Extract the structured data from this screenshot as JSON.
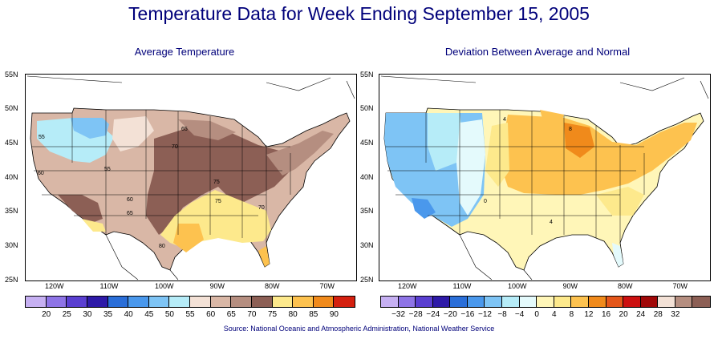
{
  "title": "Temperature Data for Week Ending September 15, 2005",
  "source": "Source:  National Oceanic and Atmospheric Administration, National Weather Service",
  "latitudes": [
    "55N",
    "50N",
    "45N",
    "40N",
    "35N",
    "30N",
    "25N"
  ],
  "left_panel": {
    "subtitle": "Average Temperature",
    "longitudes": [
      "120W",
      "110W",
      "100W",
      "90W",
      "80W",
      "70W"
    ],
    "legend": {
      "colors": [
        "#c6b0f2",
        "#8e74e6",
        "#5a3fd1",
        "#2e1aa8",
        "#2a6ed8",
        "#4a98ec",
        "#7ec4f5",
        "#b6ecf8",
        "#f3e1d6",
        "#d9b7a6",
        "#b58e80",
        "#8c5f55",
        "#fde98c",
        "#fdc24f",
        "#f08a1b",
        "#d4200f"
      ],
      "labels": [
        "20",
        "25",
        "30",
        "35",
        "40",
        "45",
        "50",
        "55",
        "60",
        "65",
        "70",
        "75",
        "80",
        "85",
        "90"
      ]
    },
    "contour_labels": [
      "55",
      "60",
      "55",
      "65",
      "70",
      "75",
      "60",
      "65",
      "75",
      "70",
      "80"
    ]
  },
  "right_panel": {
    "subtitle": "Deviation Between Average and Normal",
    "longitudes": [
      "120W",
      "110W",
      "100W",
      "90W",
      "80W",
      "70W"
    ],
    "legend": {
      "colors": [
        "#c6b0f2",
        "#8e74e6",
        "#5a3fd1",
        "#2e1aa8",
        "#2a6ed8",
        "#4a98ec",
        "#7ec4f5",
        "#b6ecf8",
        "#e4fafc",
        "#fff6b8",
        "#fde98c",
        "#fdc24f",
        "#f08a1b",
        "#e4561a",
        "#cc1010",
        "#a00808",
        "#f3e1d6",
        "#b58e80",
        "#8c5f55"
      ],
      "labels": [
        "−32",
        "−28",
        "−24",
        "−20",
        "−16",
        "−12",
        "−8",
        "−4",
        "0",
        "4",
        "8",
        "12",
        "16",
        "20",
        "24",
        "28",
        "32"
      ]
    },
    "contour_labels": [
      "8",
      "0",
      "4",
      "4"
    ]
  }
}
